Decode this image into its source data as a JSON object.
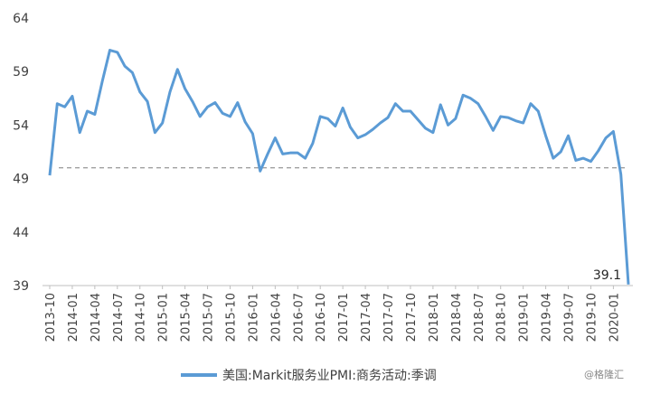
{
  "chart_data": {
    "type": "line",
    "categories": [
      "2013-10",
      null,
      null,
      "2014-01",
      null,
      null,
      "2014-04",
      null,
      null,
      "2014-07",
      null,
      null,
      "2014-10",
      null,
      null,
      "2015-01",
      null,
      null,
      "2015-04",
      null,
      null,
      "2015-07",
      null,
      null,
      "2015-10",
      null,
      null,
      "2016-01",
      null,
      null,
      "2016-04",
      null,
      null,
      "2016-07",
      null,
      null,
      "2016-10",
      null,
      null,
      "2017-01",
      null,
      null,
      "2017-04",
      null,
      null,
      "2017-07",
      null,
      null,
      "2017-10",
      null,
      null,
      "2018-01",
      null,
      null,
      "2018-04",
      null,
      null,
      "2018-07",
      null,
      null,
      "2018-10",
      null,
      null,
      "2019-01",
      null,
      null,
      "2019-04",
      null,
      null,
      "2019-07",
      null,
      null,
      "2019-10",
      null,
      null,
      "2020-01",
      null,
      null
    ],
    "series": [
      {
        "name": "美国:Markit服务业PMI:商务活动:季调",
        "color": "#5b9bd5",
        "values": [
          49.3,
          56.0,
          55.7,
          56.7,
          53.3,
          55.3,
          55.0,
          58.1,
          61.0,
          60.8,
          59.5,
          58.9,
          57.1,
          56.2,
          53.3,
          54.2,
          57.1,
          59.2,
          57.4,
          56.2,
          54.8,
          55.7,
          56.1,
          55.1,
          54.8,
          56.1,
          54.3,
          53.2,
          49.7,
          51.3,
          52.8,
          51.3,
          51.4,
          51.4,
          50.9,
          52.3,
          54.8,
          54.6,
          53.9,
          55.6,
          53.8,
          52.8,
          53.1,
          53.6,
          54.2,
          54.7,
          56.0,
          55.3,
          55.3,
          54.5,
          53.7,
          53.3,
          55.9,
          54.0,
          54.6,
          56.8,
          56.5,
          56.0,
          54.8,
          53.5,
          54.8,
          54.7,
          54.4,
          54.2,
          56.0,
          55.3,
          53.0,
          50.9,
          51.5,
          53.0,
          50.7,
          50.9,
          50.6,
          51.6,
          52.8,
          53.4,
          49.4,
          39.1
        ]
      }
    ],
    "value_labels": {
      "77": "39.1"
    },
    "ylim": [
      39,
      64
    ],
    "yticks": [
      39,
      44,
      49,
      54,
      59,
      64
    ],
    "hline": 50,
    "legend": "bottom",
    "watermark": "@格隆汇"
  }
}
